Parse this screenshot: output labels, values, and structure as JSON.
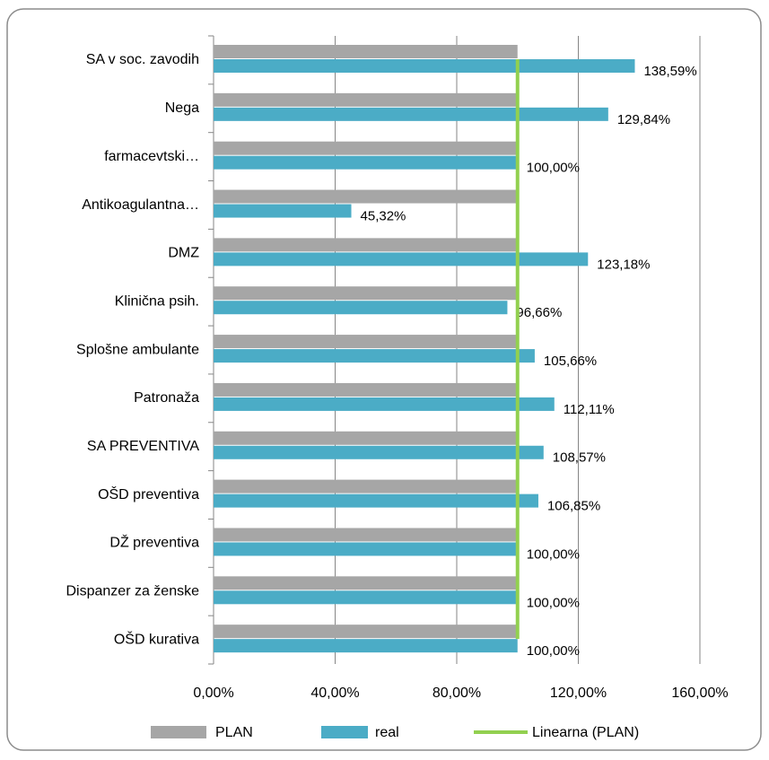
{
  "chart_data": {
    "type": "barh",
    "categories": [
      "SA v soc. zavodih",
      "Nega",
      "farmacevtski…",
      "Antikoagulantna…",
      "DMZ",
      "Klinična psih.",
      "Splošne ambulante",
      "Patronaža",
      "SA PREVENTIVA",
      "OŠD preventiva",
      "DŽ preventiva",
      "Dispanzer za ženske",
      "OŠD kurativa"
    ],
    "series": [
      {
        "name": "PLAN",
        "color": "#a6a6a6",
        "values": [
          100,
          100,
          100,
          100,
          100,
          100,
          100,
          100,
          100,
          100,
          100,
          100,
          100
        ]
      },
      {
        "name": "real",
        "color": "#4bacc6",
        "values": [
          138.59,
          129.84,
          100,
          45.32,
          123.18,
          96.66,
          105.66,
          112.11,
          108.57,
          106.85,
          100,
          100,
          100
        ],
        "value_labels": [
          "138,59%",
          "129,84%",
          "100,00%",
          "45,32%",
          "123,18%",
          "96,66%",
          "105,66%",
          "112,11%",
          "108,57%",
          "106,85%",
          "100,00%",
          "100,00%",
          "100,00%"
        ]
      },
      {
        "name": "Linearna (PLAN)",
        "type": "line",
        "color": "#92d050",
        "values": [
          100,
          100,
          100,
          100,
          100,
          100,
          100,
          100,
          100,
          100,
          100,
          100,
          100
        ]
      }
    ],
    "xlim": [
      0,
      160
    ],
    "xticks": [
      {
        "value": 0,
        "label": "0,00%"
      },
      {
        "value": 40,
        "label": "40,00%"
      },
      {
        "value": 80,
        "label": "80,00%"
      },
      {
        "value": 120,
        "label": "120,00%"
      },
      {
        "value": 160,
        "label": "160,00%"
      }
    ],
    "grid": true,
    "legend": "bottom"
  }
}
